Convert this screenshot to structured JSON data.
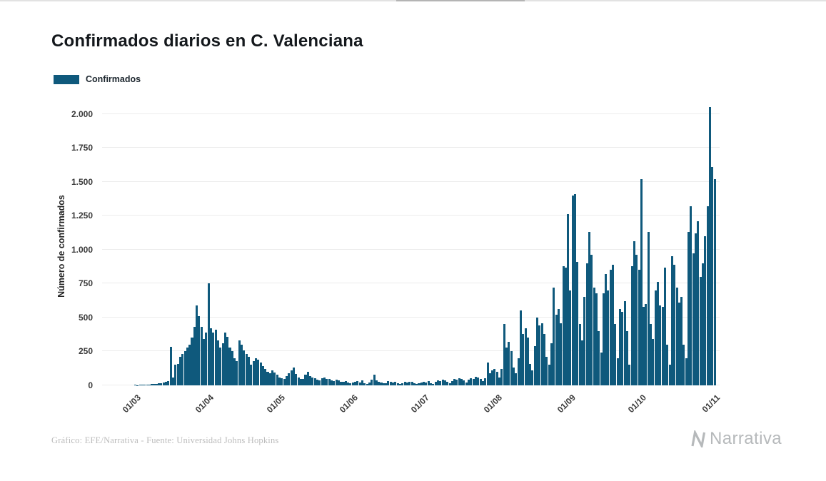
{
  "title": "Confirmados diarios en C. Valenciana",
  "legend": {
    "label": "Confirmados",
    "color": "#0f597c"
  },
  "footer": {
    "credit": "Gráfico: EFE/Narrativa - Fuente: Universidad Johns Hopkins"
  },
  "brand": {
    "name": "Narrativa",
    "color": "#b6b9bb"
  },
  "chart_data": {
    "type": "bar",
    "title": "Confirmados diarios en C. Valenciana",
    "series_name": "Confirmados",
    "xlabel": "",
    "ylabel": "Número de confirmados",
    "bar_color": "#0f597c",
    "grid": true,
    "legend_position": "top-left",
    "x_unit": "day",
    "x_range": [
      "01/03",
      "01/11"
    ],
    "ylim": [
      0,
      2050
    ],
    "y_ticks": [
      {
        "v": 0,
        "label": "0"
      },
      {
        "v": 250,
        "label": "250"
      },
      {
        "v": 500,
        "label": "500"
      },
      {
        "v": 750,
        "label": "750"
      },
      {
        "v": 1000,
        "label": "1.000"
      },
      {
        "v": 1250,
        "label": "1.250"
      },
      {
        "v": 1500,
        "label": "1.500"
      },
      {
        "v": 1750,
        "label": "1.750"
      },
      {
        "v": 2000,
        "label": "2.000"
      }
    ],
    "x_ticks": [
      {
        "i": 0,
        "label": "01/03"
      },
      {
        "i": 31,
        "label": "01/04"
      },
      {
        "i": 61,
        "label": "01/05"
      },
      {
        "i": 92,
        "label": "01/06"
      },
      {
        "i": 122,
        "label": "01/07"
      },
      {
        "i": 153,
        "label": "01/08"
      },
      {
        "i": 184,
        "label": "01/09"
      },
      {
        "i": 214,
        "label": "01/10"
      },
      {
        "i": 245,
        "label": "01/11"
      }
    ],
    "values": [
      3,
      2,
      4,
      3,
      5,
      4,
      6,
      8,
      10,
      12,
      15,
      14,
      20,
      25,
      30,
      285,
      60,
      150,
      160,
      210,
      230,
      250,
      280,
      300,
      350,
      430,
      590,
      510,
      430,
      340,
      390,
      750,
      420,
      390,
      410,
      330,
      280,
      310,
      390,
      360,
      280,
      250,
      200,
      180,
      330,
      300,
      260,
      230,
      210,
      150,
      180,
      200,
      190,
      170,
      140,
      120,
      100,
      90,
      110,
      95,
      80,
      60,
      55,
      45,
      70,
      90,
      110,
      130,
      85,
      60,
      50,
      45,
      80,
      100,
      70,
      60,
      55,
      40,
      35,
      55,
      60,
      45,
      50,
      35,
      30,
      40,
      35,
      28,
      25,
      30,
      22,
      18,
      20,
      25,
      30,
      22,
      35,
      18,
      12,
      22,
      40,
      80,
      35,
      28,
      22,
      14,
      18,
      30,
      25,
      20,
      26,
      16,
      10,
      18,
      24,
      20,
      28,
      24,
      18,
      10,
      14,
      22,
      28,
      22,
      32,
      18,
      12,
      26,
      38,
      32,
      42,
      36,
      28,
      18,
      32,
      48,
      42,
      52,
      46,
      38,
      22,
      42,
      55,
      50,
      65,
      60,
      45,
      30,
      55,
      170,
      90,
      110,
      120,
      100,
      60,
      120,
      450,
      280,
      320,
      250,
      130,
      90,
      200,
      550,
      380,
      420,
      350,
      160,
      110,
      290,
      500,
      440,
      460,
      380,
      210,
      150,
      310,
      720,
      520,
      560,
      460,
      880,
      870,
      1260,
      700,
      1400,
      1410,
      910,
      450,
      330,
      650,
      900,
      1130,
      960,
      720,
      680,
      400,
      240,
      680,
      820,
      700,
      850,
      890,
      450,
      200,
      560,
      540,
      620,
      400,
      150,
      880,
      1060,
      960,
      850,
      1520,
      580,
      600,
      1130,
      450,
      340,
      700,
      760,
      590,
      580,
      870,
      300,
      150,
      950,
      890,
      720,
      610,
      650,
      300,
      200,
      1130,
      1320,
      970,
      1120,
      1210,
      800,
      900,
      1100,
      1320,
      2050,
      1610,
      1520
    ]
  }
}
